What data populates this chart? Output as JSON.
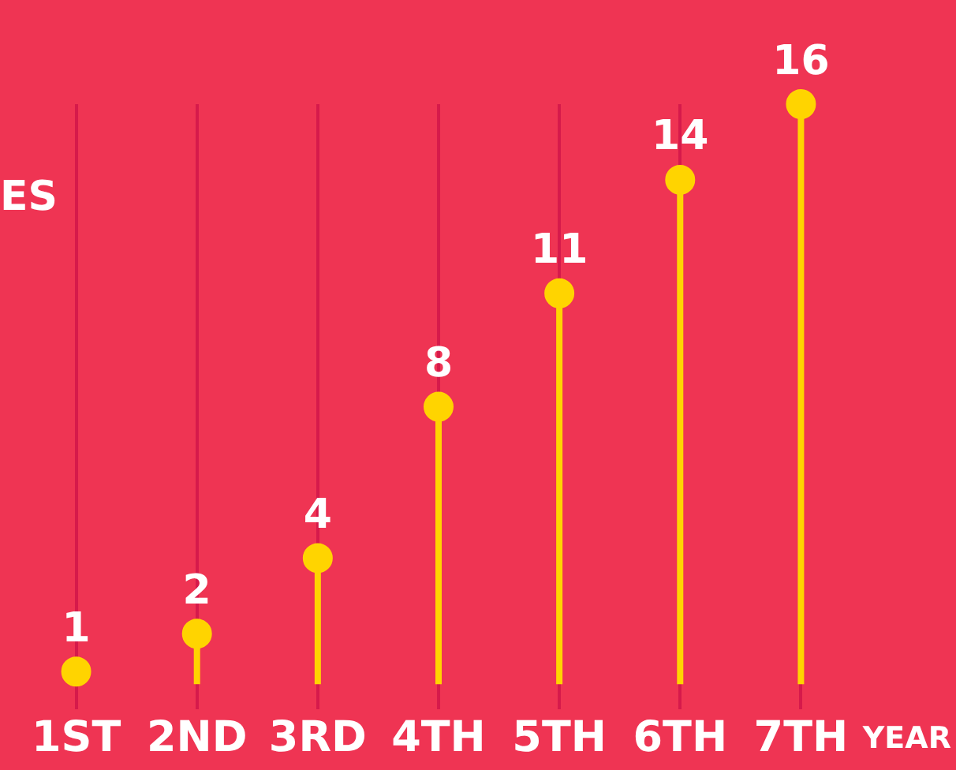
{
  "chart_data": {
    "type": "lollipop",
    "categories": [
      "1ST",
      "2ND",
      "3RD",
      "4TH",
      "5TH",
      "6TH",
      "7TH"
    ],
    "values": [
      1,
      2,
      4,
      8,
      11,
      14,
      16
    ],
    "color": "#ffd400",
    "ylim": [
      0,
      16
    ],
    "data_labels": true,
    "grid": "x",
    "tick_labels": "x",
    "xlabel": "YEAR",
    "annotations": [
      "ES"
    ]
  }
}
